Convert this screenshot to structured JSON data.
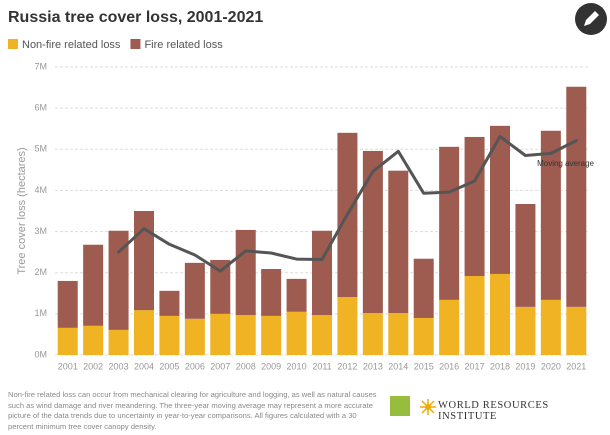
{
  "chart_data": {
    "type": "stacked-bar",
    "title": "Russia tree cover loss, 2001-2021",
    "y_label": "Tree cover loss (hectares)",
    "categories": [
      "2001",
      "2002",
      "2003",
      "2004",
      "2005",
      "2006",
      "2007",
      "2008",
      "2009",
      "2010",
      "2011",
      "2012",
      "2013",
      "2014",
      "2015",
      "2016",
      "2017",
      "2018",
      "2019",
      "2020",
      "2021"
    ],
    "series": [
      {
        "name": "Non-fire related loss",
        "color": "#f0b323",
        "values": [
          0.66,
          0.71,
          0.61,
          1.09,
          0.95,
          0.88,
          1.0,
          0.97,
          0.95,
          1.05,
          0.97,
          1.41,
          1.02,
          1.02,
          0.9,
          1.34,
          1.92,
          1.97,
          1.17,
          1.34,
          1.17
        ]
      },
      {
        "name": "Fire related loss",
        "color": "#9e5b4f",
        "values": [
          1.14,
          1.97,
          2.41,
          2.41,
          0.61,
          1.36,
          1.31,
          2.07,
          1.14,
          0.8,
          2.05,
          3.99,
          3.94,
          3.46,
          1.44,
          3.72,
          3.38,
          3.6,
          2.5,
          4.11,
          5.35
        ]
      }
    ],
    "moving_average": {
      "name": "Moving average",
      "color": "#555555",
      "values": [
        null,
        null,
        2.5,
        3.07,
        2.69,
        2.43,
        2.04,
        2.53,
        2.48,
        2.33,
        2.32,
        3.42,
        4.46,
        4.95,
        3.93,
        3.96,
        4.23,
        5.31,
        4.85,
        4.9,
        5.21
      ]
    },
    "ylim": [
      0,
      7
    ],
    "yticks": [
      {
        "value": 0,
        "label": "0M"
      },
      {
        "value": 1,
        "label": "1M"
      },
      {
        "value": 2,
        "label": "2M"
      },
      {
        "value": 3,
        "label": "3M"
      },
      {
        "value": 4,
        "label": "4M"
      },
      {
        "value": 5,
        "label": "5M"
      },
      {
        "value": 6,
        "label": "6M"
      },
      {
        "value": 7,
        "label": "7M"
      }
    ],
    "grid": true,
    "footnote": "Non-fire related loss can occur from mechanical clearing for agriculture and logging, as well as natural causes such as wind damage and river meandering. The three-year moving average may represent a more accurate picture of the data trends due to uncertainty in year-to-year comparisons. All figures calculated with a 30 percent minimum tree cover canopy density.",
    "source": "WORLD RESOURCES INSTITUTE"
  }
}
